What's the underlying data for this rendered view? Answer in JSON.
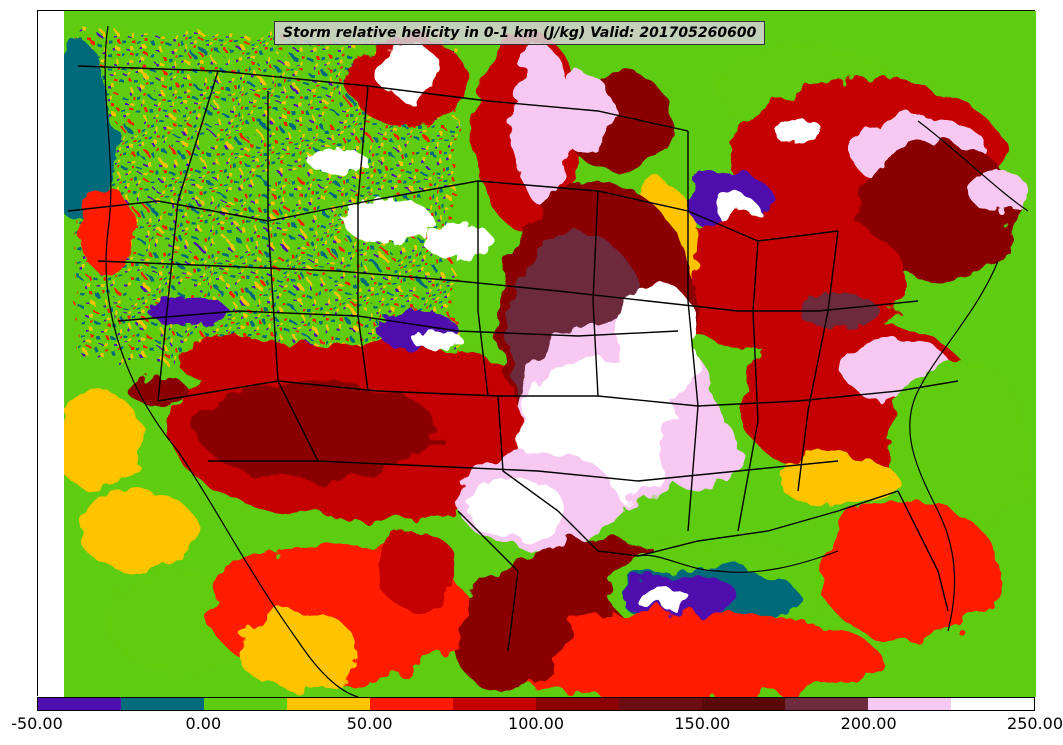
{
  "title": "Storm relative helicity in 0-1 km (J/kg) Valid: 201705260600",
  "colorbar": {
    "segments": [
      "#4f0fae",
      "#006b7a",
      "#5ecc10",
      "#ffc400",
      "#ff1a00",
      "#c40000",
      "#8a0000",
      "#6b0d10",
      "#5a0808",
      "#6e2a3e",
      "#f7c9f2",
      "#ffffff"
    ],
    "tick_labels": [
      "-50.00",
      "0.00",
      "50.00",
      "100.00",
      "150.00",
      "200.00",
      "250.00"
    ]
  },
  "map": {
    "variable": "storm-relative helicity",
    "layer": "0-1 km",
    "units": "J/kg",
    "palette": {
      "very_low": "#4f0fae",
      "low": "#006b7a",
      "near_zero": "#5ecc10",
      "moderate": "#ffc400",
      "elevated": "#ff1a00",
      "high": "#c40000",
      "very_high": "#8a0000",
      "extreme": "#5a0808",
      "max_pink": "#f7c9f2",
      "max_white": "#ffffff"
    }
  }
}
